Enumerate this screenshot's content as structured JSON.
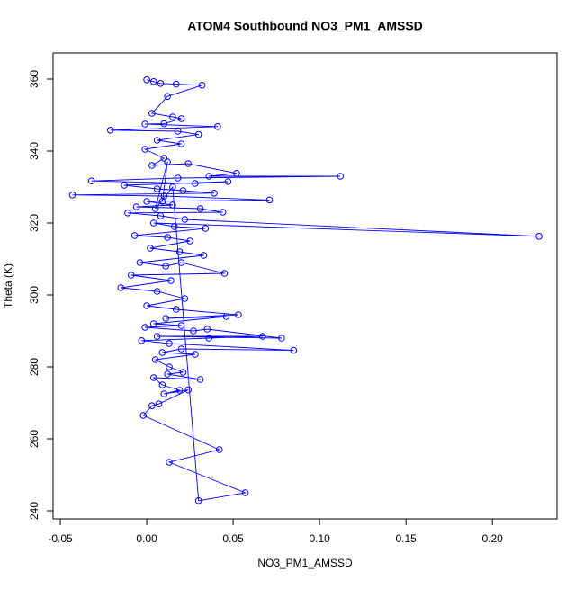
{
  "chart_data": {
    "type": "line",
    "title": "ATOM4 Southbound NO3_PM1_AMSSD",
    "xlabel": "NO3_PM1_AMSSD",
    "ylabel": "Theta (K)",
    "color": "#0000ff",
    "marker": "open-circle",
    "xlim": [
      -0.0542,
      0.2374
    ],
    "ylim": [
      237.75,
      367.25
    ],
    "xticks": [
      -0.05,
      {
        "value": 0,
        "label": "0.00"
      },
      0.05,
      {
        "value": 0.1,
        "label": "0.10"
      },
      0.15,
      {
        "value": 0.2,
        "label": "0.20"
      }
    ],
    "yticks": [
      240,
      260,
      280,
      300,
      320,
      340,
      360
    ],
    "x": [
      0.0,
      0.004,
      0.008,
      0.017,
      0.032,
      0.012,
      0.003,
      0.015,
      0.02,
      0.01,
      -0.001,
      0.041,
      -0.021,
      0.018,
      0.03,
      0.006,
      0.02,
      -0.001,
      0.01,
      0.003,
      0.024,
      0.052,
      0.036,
      0.112,
      0.018,
      -0.032,
      0.028,
      0.047,
      -0.013,
      0.006,
      0.021,
      0.039,
      -0.043,
      0.01,
      0.071,
      0.0,
      0.015,
      -0.006,
      0.031,
      0.044,
      -0.011,
      0.008,
      0.022,
      0.227,
      0.004,
      0.016,
      0.034,
      -0.007,
      0.012,
      0.025,
      0.002,
      0.019,
      0.033,
      -0.004,
      0.011,
      0.02,
      0.045,
      -0.009,
      0.014,
      -0.015,
      0.006,
      0.022,
      0.0,
      0.017,
      0.053,
      0.011,
      0.046,
      0.004,
      0.02,
      -0.001,
      0.027,
      0.035,
      0.078,
      0.006,
      0.067,
      0.036,
      -0.003,
      0.013,
      0.085,
      0.02,
      0.009,
      0.028,
      0.005,
      0.013,
      0.021,
      0.012,
      0.031,
      0.004,
      0.009,
      0.019,
      0.01,
      0.024,
      0.007,
      0.003,
      -0.002,
      0.042,
      0.013,
      0.057,
      0.03,
      0.015,
      0.005,
      0.012,
      0.009
    ],
    "values": [
      359.8,
      359.3,
      358.8,
      358.6,
      358.3,
      355.2,
      350.5,
      349.5,
      349,
      347.6,
      347.5,
      346.8,
      345.8,
      345.5,
      344.6,
      343,
      342,
      340.5,
      338,
      336,
      336.5,
      333.8,
      333,
      333,
      332.5,
      331.7,
      331,
      331.5,
      330.5,
      329.5,
      329,
      328.3,
      327.8,
      327.5,
      326.4,
      326,
      325,
      324.5,
      324,
      323,
      322.8,
      322,
      321,
      316.3,
      320,
      319,
      318.5,
      316.5,
      316,
      315,
      313,
      312,
      311,
      309,
      308,
      309,
      306,
      305.5,
      304,
      302,
      301,
      299,
      297,
      296,
      294.5,
      293.5,
      294,
      292,
      291.5,
      291,
      290,
      290.5,
      288,
      288.5,
      288.5,
      288,
      287.3,
      286.5,
      284.6,
      285,
      284,
      283.5,
      282,
      280,
      278.5,
      278,
      276.5,
      277,
      275,
      273.5,
      272.5,
      273.6,
      269.7,
      269.2,
      266.5,
      257,
      253.5,
      245,
      242.8,
      330,
      324,
      337,
      326
    ]
  }
}
